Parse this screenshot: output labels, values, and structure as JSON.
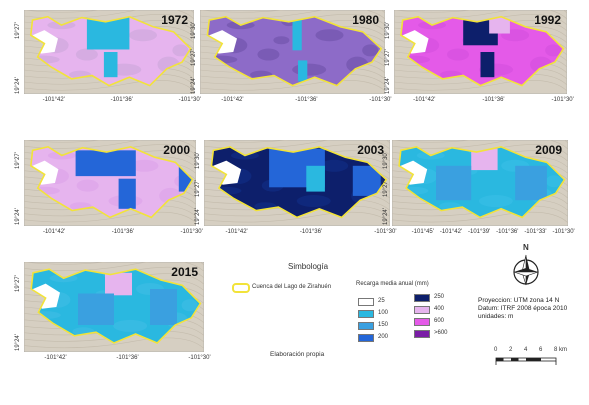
{
  "colors": {
    "v25": "#ffffff",
    "v100": "#2ab8e0",
    "v150": "#3aa0e0",
    "v200": "#2466d8",
    "v250": "#0d1f6b",
    "v400": "#e6b4ee",
    "v600": "#e45ae8",
    "v600plus": "#7a1da6",
    "basin_outline": "#f2e33a",
    "terrain": "#d6cfc2"
  },
  "panels": [
    {
      "year": "1972",
      "y_ticks": [
        "19°27'",
        "19°24'"
      ],
      "x_ticks": [
        "-101°42'",
        "-101°36'",
        "-101°30'"
      ]
    },
    {
      "year": "1980",
      "y_ticks": [
        "19°30'",
        "19°27'",
        "19°24'"
      ],
      "x_ticks": [
        "-101°42'",
        "-101°36'",
        "-101°30'"
      ]
    },
    {
      "year": "1992",
      "y_ticks": [
        "19°30'",
        "19°27'",
        "19°24'"
      ],
      "x_ticks": [
        "-101°42'",
        "-101°36'",
        "-101°30'"
      ]
    },
    {
      "year": "2000",
      "y_ticks": [
        "19°27'",
        "19°24'"
      ],
      "x_ticks": [
        "-101°42'",
        "-101°36'",
        "-101°30'"
      ]
    },
    {
      "year": "2003",
      "y_ticks": [
        "19°30'",
        "19°27'",
        "19°24'"
      ],
      "x_ticks": [
        "-101°42'",
        "-101°36'",
        "-101°30'"
      ]
    },
    {
      "year": "2009",
      "y_ticks": [
        "19°30'",
        "19°27'",
        "19°24'"
      ],
      "x_ticks": [
        "-101°45'",
        "-101°42'",
        "-101°39'",
        "-101°36'",
        "-101°33'",
        "-101°30'"
      ]
    },
    {
      "year": "2015",
      "y_ticks": [
        "19°27'",
        "19°24'"
      ],
      "x_ticks": [
        "-101°42'",
        "-101°36'",
        "-101°30'"
      ]
    }
  ],
  "legend": {
    "title": "Simbología",
    "basin_label": "Cuenca del Lago de Zirahuén",
    "recharge_title": "Recarga media anual (mm)",
    "classes_left": [
      "25",
      "100",
      "150",
      "200"
    ],
    "classes_right": [
      "250",
      "400",
      "600",
      ">600"
    ],
    "credit": "Elaboración propia"
  },
  "info": {
    "projection": "Proyeccion: UTM zona 14 N",
    "datum": "Datum: ITRF 2008 época 2010",
    "units": "unidades: m",
    "north": "N",
    "scale_labels": [
      "0",
      "2",
      "4",
      "6",
      "8 km"
    ]
  }
}
